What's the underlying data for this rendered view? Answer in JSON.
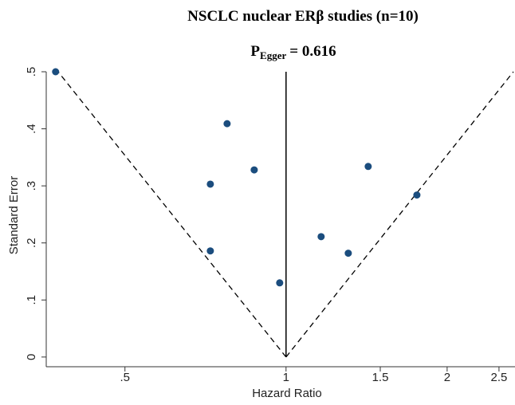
{
  "chart_data": {
    "type": "scatter",
    "title": "NSCLC nuclear ERβ studies (n=10)",
    "annotation": {
      "symbol": "P",
      "subscript": "Egger",
      "text": "= 0.616"
    },
    "x_label": "Hazard Ratio",
    "y_label": "Standard Error",
    "x_scale": "log",
    "color": "#1b4d7e",
    "x": [
      0.371,
      0.776,
      0.722,
      0.872,
      0.722,
      0.973,
      1.163,
      1.307,
      1.424,
      1.756
    ],
    "values": [
      0.5,
      0.409,
      0.303,
      0.328,
      0.186,
      0.13,
      0.211,
      0.182,
      0.334,
      0.284
    ],
    "pooled_estimate": 1,
    "funnel_limits": [
      0.375,
      2.66
    ],
    "xlim": [
      0.365,
      2.66
    ],
    "ylim": [
      -0.017,
      0.5
    ],
    "xticks": [
      {
        "value": 0.5,
        "label": ".5"
      },
      1,
      1.5,
      2,
      2.5
    ],
    "yticks": [
      0,
      {
        "value": 0.1,
        "label": ".1"
      },
      {
        "value": 0.2,
        "label": ".2"
      },
      {
        "value": 0.3,
        "label": ".3"
      },
      {
        "value": 0.4,
        "label": ".4"
      },
      {
        "value": 0.5,
        "label": ".5"
      }
    ]
  }
}
